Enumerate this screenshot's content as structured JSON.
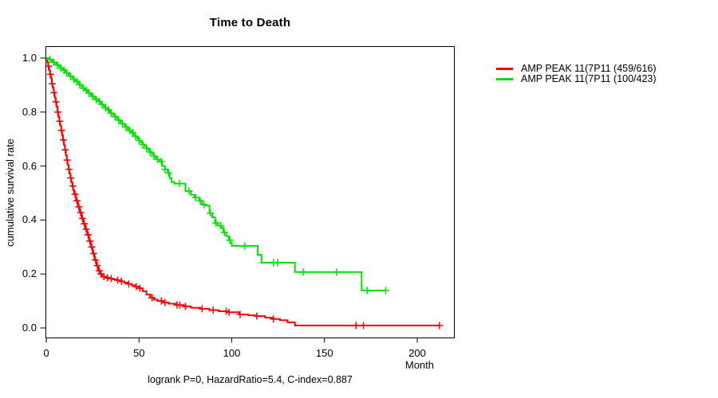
{
  "chart_data": {
    "type": "line",
    "subtype": "kaplan-meier-step",
    "title": "Time to Death",
    "xlabel": "Month",
    "ylabel": "cumulative survival rate",
    "annotation": "logrank P=0, HazardRatio=5.4, C-index=0.887",
    "xlim": [
      0,
      220
    ],
    "ylim": [
      0.0,
      1.0
    ],
    "x_ticks": [
      "0",
      "50",
      "100",
      "150",
      "200"
    ],
    "x_tick_values": [
      0,
      50,
      100,
      150,
      200
    ],
    "y_ticks": [
      "0.0",
      "0.2",
      "0.4",
      "0.6",
      "0.8",
      "1.0"
    ],
    "y_tick_values": [
      0.0,
      0.2,
      0.4,
      0.6,
      0.8,
      1.0
    ],
    "grid": false,
    "legend_position": "outside-top-right",
    "box_color": "#000000",
    "series": [
      {
        "name": "AMP PEAK 11(7P11 (459/616)",
        "events": 459,
        "n": 616,
        "color": "#ff0000",
        "steps": [
          [
            0,
            1.0
          ],
          [
            0.5,
            0.985
          ],
          [
            1,
            0.97
          ],
          [
            1.5,
            0.955
          ],
          [
            2,
            0.94
          ],
          [
            2.5,
            0.925
          ],
          [
            3,
            0.905
          ],
          [
            3.5,
            0.89
          ],
          [
            4,
            0.872
          ],
          [
            4.5,
            0.855
          ],
          [
            5,
            0.838
          ],
          [
            5.5,
            0.82
          ],
          [
            6,
            0.8
          ],
          [
            6.5,
            0.783
          ],
          [
            7,
            0.766
          ],
          [
            7.5,
            0.75
          ],
          [
            8,
            0.732
          ],
          [
            8.5,
            0.714
          ],
          [
            9,
            0.697
          ],
          [
            9.5,
            0.678
          ],
          [
            10,
            0.66
          ],
          [
            10.5,
            0.64
          ],
          [
            11,
            0.622
          ],
          [
            11.5,
            0.604
          ],
          [
            12,
            0.588
          ],
          [
            12.5,
            0.572
          ],
          [
            13,
            0.556
          ],
          [
            13.5,
            0.54
          ],
          [
            14,
            0.526
          ],
          [
            14.5,
            0.511
          ],
          [
            15,
            0.496
          ],
          [
            16,
            0.471
          ],
          [
            17,
            0.449
          ],
          [
            18,
            0.428
          ],
          [
            19,
            0.406
          ],
          [
            20,
            0.386
          ],
          [
            21,
            0.366
          ],
          [
            22,
            0.345
          ],
          [
            23,
            0.322
          ],
          [
            24,
            0.3
          ],
          [
            25,
            0.276
          ],
          [
            26,
            0.252
          ],
          [
            27,
            0.231
          ],
          [
            28,
            0.212
          ],
          [
            29,
            0.2
          ],
          [
            30,
            0.19
          ],
          [
            32,
            0.186
          ],
          [
            34,
            0.183
          ],
          [
            36,
            0.18
          ],
          [
            38,
            0.177
          ],
          [
            40,
            0.173
          ],
          [
            42,
            0.168
          ],
          [
            44,
            0.163
          ],
          [
            46,
            0.158
          ],
          [
            48,
            0.153
          ],
          [
            50,
            0.147
          ],
          [
            52,
            0.136
          ],
          [
            54,
            0.124
          ],
          [
            56,
            0.112
          ],
          [
            58,
            0.105
          ],
          [
            60,
            0.1
          ],
          [
            63,
            0.094
          ],
          [
            66,
            0.09
          ],
          [
            70,
            0.085
          ],
          [
            74,
            0.08
          ],
          [
            78,
            0.075
          ],
          [
            83,
            0.071
          ],
          [
            88,
            0.066
          ],
          [
            93,
            0.062
          ],
          [
            98,
            0.058
          ],
          [
            104,
            0.05
          ],
          [
            109,
            0.047
          ],
          [
            113,
            0.044
          ],
          [
            118,
            0.038
          ],
          [
            122,
            0.033
          ],
          [
            126,
            0.029
          ],
          [
            130,
            0.021
          ],
          [
            134,
            0.009
          ],
          [
            212,
            0.009
          ]
        ],
        "censor_times": [
          1.2,
          2.2,
          3.2,
          4.2,
          5.2,
          6.2,
          7.2,
          8.2,
          9.2,
          10.2,
          11.2,
          12.2,
          13.2,
          14.3,
          15.5,
          16.5,
          17.5,
          18.5,
          19.5,
          20.5,
          21.5,
          22.5,
          23.5,
          24.5,
          25.5,
          26.5,
          27.5,
          28.5,
          29.5,
          31,
          33,
          35,
          38.5,
          40.5,
          44.5,
          48.5,
          50.5,
          57,
          62,
          64,
          70.5,
          72,
          75,
          84,
          90,
          97,
          98.5,
          104.5,
          113.5,
          122.5,
          167,
          171,
          212
        ]
      },
      {
        "name": "AMP PEAK 11(7P11 (100/423)",
        "events": 100,
        "n": 423,
        "color": "#00e100",
        "steps": [
          [
            0,
            1.0
          ],
          [
            1.5,
            0.995
          ],
          [
            3,
            0.989
          ],
          [
            4,
            0.984
          ],
          [
            5,
            0.979
          ],
          [
            6,
            0.974
          ],
          [
            7,
            0.968
          ],
          [
            8,
            0.962
          ],
          [
            9,
            0.956
          ],
          [
            10,
            0.951
          ],
          [
            11,
            0.945
          ],
          [
            12,
            0.939
          ],
          [
            13,
            0.933
          ],
          [
            14,
            0.927
          ],
          [
            15,
            0.92
          ],
          [
            16,
            0.914
          ],
          [
            17,
            0.908
          ],
          [
            18,
            0.901
          ],
          [
            19,
            0.895
          ],
          [
            20,
            0.888
          ],
          [
            21,
            0.882
          ],
          [
            22,
            0.876
          ],
          [
            23,
            0.87
          ],
          [
            24,
            0.864
          ],
          [
            25,
            0.858
          ],
          [
            26,
            0.852
          ],
          [
            27,
            0.846
          ],
          [
            28,
            0.84
          ],
          [
            29,
            0.834
          ],
          [
            30,
            0.828
          ],
          [
            31,
            0.821
          ],
          [
            32,
            0.815
          ],
          [
            33,
            0.809
          ],
          [
            34,
            0.802
          ],
          [
            35,
            0.796
          ],
          [
            36,
            0.789
          ],
          [
            37,
            0.783
          ],
          [
            38,
            0.776
          ],
          [
            39,
            0.77
          ],
          [
            40,
            0.763
          ],
          [
            41,
            0.757
          ],
          [
            42,
            0.75
          ],
          [
            43,
            0.744
          ],
          [
            44,
            0.737
          ],
          [
            45,
            0.731
          ],
          [
            46,
            0.724
          ],
          [
            47,
            0.717
          ],
          [
            48,
            0.71
          ],
          [
            49,
            0.702
          ],
          [
            50,
            0.695
          ],
          [
            51,
            0.688
          ],
          [
            52,
            0.68
          ],
          [
            53,
            0.673
          ],
          [
            54,
            0.666
          ],
          [
            55,
            0.659
          ],
          [
            56,
            0.652
          ],
          [
            57,
            0.645
          ],
          [
            58,
            0.637
          ],
          [
            59,
            0.63
          ],
          [
            60,
            0.624
          ],
          [
            61,
            0.617
          ],
          [
            62.5,
            0.6
          ],
          [
            64,
            0.588
          ],
          [
            65.5,
            0.574
          ],
          [
            66.5,
            0.555
          ],
          [
            67.5,
            0.541
          ],
          [
            69,
            0.535
          ],
          [
            75,
            0.507
          ],
          [
            78,
            0.493
          ],
          [
            80,
            0.483
          ],
          [
            82.5,
            0.471
          ],
          [
            84,
            0.457
          ],
          [
            86,
            0.453
          ],
          [
            88,
            0.425
          ],
          [
            89.5,
            0.41
          ],
          [
            91,
            0.389
          ],
          [
            92.5,
            0.379
          ],
          [
            94.5,
            0.371
          ],
          [
            95.5,
            0.354
          ],
          [
            97,
            0.34
          ],
          [
            98.5,
            0.325
          ],
          [
            99.2,
            0.316
          ],
          [
            100,
            0.304
          ],
          [
            114,
            0.271
          ],
          [
            116,
            0.242
          ],
          [
            134,
            0.207
          ],
          [
            170,
            0.139
          ],
          [
            183,
            0.139
          ]
        ],
        "censor_times": [
          2,
          4,
          6,
          8,
          9.5,
          11,
          13,
          15,
          16.5,
          18,
          20,
          21.5,
          23,
          25,
          27,
          28.5,
          30,
          32,
          33.5,
          35,
          37,
          39,
          41,
          43,
          45,
          46.5,
          48,
          50,
          52,
          54,
          56,
          58,
          60,
          62,
          64,
          66,
          71.8,
          77,
          80.5,
          83,
          85,
          88.5,
          91.5,
          94,
          96,
          99,
          107,
          122.5,
          124.7,
          138.5,
          156.5,
          173,
          183
        ]
      }
    ]
  }
}
